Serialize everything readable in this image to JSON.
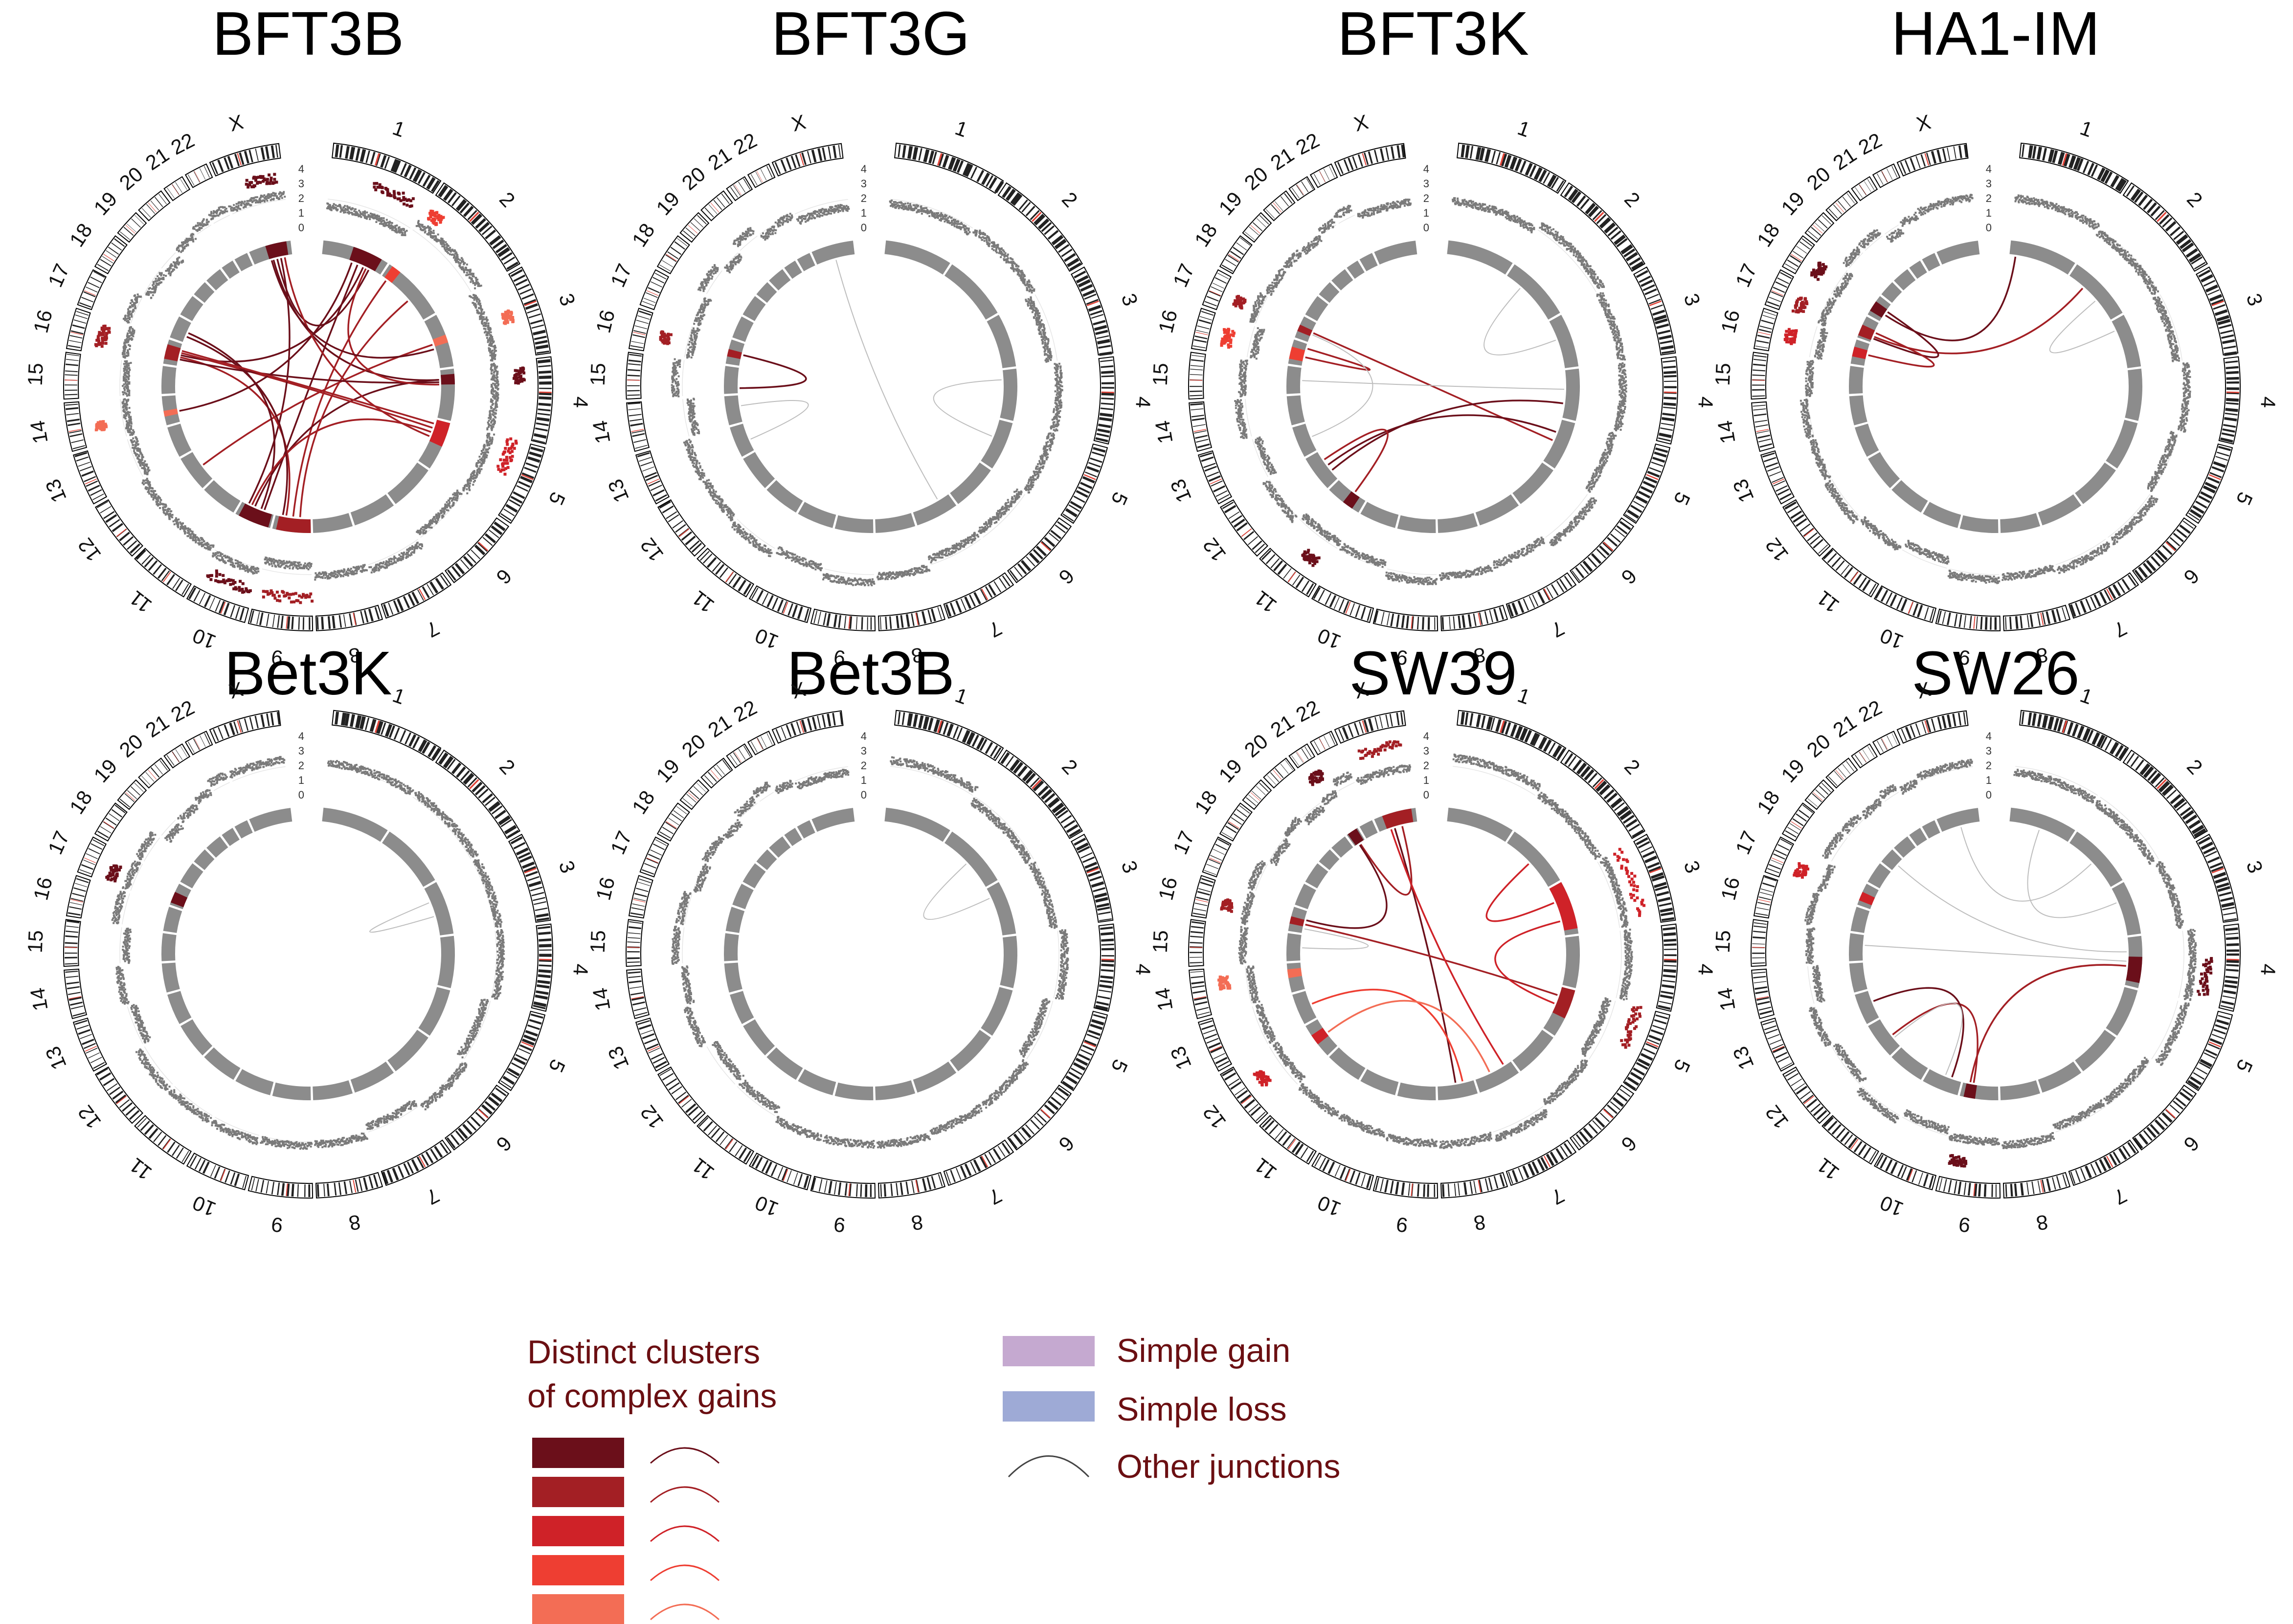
{
  "chromosomes": [
    "1",
    "2",
    "3",
    "4",
    "5",
    "6",
    "7",
    "8",
    "9",
    "10",
    "11",
    "12",
    "13",
    "14",
    "15",
    "16",
    "17",
    "18",
    "19",
    "20",
    "21",
    "22",
    "X"
  ],
  "chromosome_sizes": [
    249,
    243,
    198,
    191,
    181,
    171,
    159,
    146,
    141,
    136,
    135,
    133,
    115,
    107,
    102,
    90,
    83,
    80,
    59,
    64,
    47,
    51,
    156
  ],
  "copy_number_ticks": [
    "0",
    "1",
    "2",
    "3",
    "4"
  ],
  "colors": {
    "ideogram_outline": "#000000",
    "band": "#222222",
    "centromere": "#e2453a",
    "copy_points": "#7a7a7a",
    "chromosome_ring": "#8c8c8c",
    "other_junction": "#bdbdbd",
    "simple_gain": "#c5a9d0",
    "simple_loss": "#9eaad6",
    "cluster_1": "#6b0f1a",
    "cluster_2": "#a31f24",
    "cluster_3": "#cf2228",
    "cluster_4": "#ee3e32",
    "cluster_5": "#f36d55",
    "legend_text": "#6b0f12"
  },
  "panels": [
    {
      "title": "BFT3B",
      "clusters": [
        {
          "level": 1,
          "chr": "1",
          "start": 0.45,
          "end": 0.9
        },
        {
          "level": 4,
          "chr": "2",
          "start": 0.05,
          "end": 0.2
        },
        {
          "level": 5,
          "chr": "3",
          "start": 0.4,
          "end": 0.55
        },
        {
          "level": 1,
          "chr": "4",
          "start": 0.1,
          "end": 0.3
        },
        {
          "level": 3,
          "chr": "5",
          "start": 0.0,
          "end": 0.5
        },
        {
          "level": 2,
          "chr": "9",
          "start": 0.0,
          "end": 0.9
        },
        {
          "level": 1,
          "chr": "10",
          "start": 0.05,
          "end": 0.9
        },
        {
          "level": 5,
          "chr": "14",
          "start": 0.3,
          "end": 0.5
        },
        {
          "level": 2,
          "chr": "16",
          "start": 0.2,
          "end": 0.8
        },
        {
          "level": 1,
          "chr": "X",
          "start": 0.4,
          "end": 0.9
        }
      ],
      "junctions": [
        {
          "level": 1,
          "a": {
            "chr": "1",
            "pos": 0.6
          },
          "b": {
            "chr": "10",
            "pos": 0.3
          }
        },
        {
          "level": 1,
          "a": {
            "chr": "1",
            "pos": 0.7
          },
          "b": {
            "chr": "16",
            "pos": 0.5
          }
        },
        {
          "level": 1,
          "a": {
            "chr": "1",
            "pos": 0.8
          },
          "b": {
            "chr": "X",
            "pos": 0.6
          }
        },
        {
          "level": 2,
          "a": {
            "chr": "2",
            "pos": 0.1
          },
          "b": {
            "chr": "9",
            "pos": 0.5
          }
        },
        {
          "level": 1,
          "a": {
            "chr": "4",
            "pos": 0.2
          },
          "b": {
            "chr": "10",
            "pos": 0.6
          }
        },
        {
          "level": 2,
          "a": {
            "chr": "5",
            "pos": 0.2
          },
          "b": {
            "chr": "16",
            "pos": 0.6
          }
        },
        {
          "level": 1,
          "a": {
            "chr": "X",
            "pos": 0.7
          },
          "b": {
            "chr": "10",
            "pos": 0.8
          }
        },
        {
          "level": 2,
          "a": {
            "chr": "16",
            "pos": 0.4
          },
          "b": {
            "chr": "9",
            "pos": 0.7
          }
        },
        {
          "level": 1,
          "a": {
            "chr": "X",
            "pos": 0.5
          },
          "b": {
            "chr": "4",
            "pos": 0.2
          }
        },
        {
          "level": 2,
          "a": {
            "chr": "3",
            "pos": 0.5
          },
          "b": {
            "chr": "12",
            "pos": 0.5
          }
        },
        {
          "level": 1,
          "a": {
            "chr": "10",
            "pos": 0.4
          },
          "b": {
            "chr": "17",
            "pos": 0.5
          }
        },
        {
          "level": 2,
          "a": {
            "chr": "9",
            "pos": 0.3
          },
          "b": {
            "chr": "2",
            "pos": 0.6
          }
        },
        {
          "level": 1,
          "a": {
            "chr": "1",
            "pos": 0.5
          },
          "b": {
            "chr": "14",
            "pos": 0.4
          }
        },
        {
          "level": 2,
          "a": {
            "chr": "5",
            "pos": 0.4
          },
          "b": {
            "chr": "X",
            "pos": 0.8
          }
        },
        {
          "level": 1,
          "a": {
            "chr": "4",
            "pos": 0.25
          },
          "b": {
            "chr": "16",
            "pos": 0.3
          }
        },
        {
          "level": 2,
          "a": {
            "chr": "10",
            "pos": 0.7
          },
          "b": {
            "chr": "5",
            "pos": 0.3
          }
        },
        {
          "level": 1,
          "a": {
            "chr": "17",
            "pos": 0.3
          },
          "b": {
            "chr": "9",
            "pos": 0.8
          }
        },
        {
          "level": 2,
          "a": {
            "chr": "1",
            "pos": 0.75
          },
          "b": {
            "chr": "4",
            "pos": 0.3
          }
        },
        {
          "level": 1,
          "a": {
            "chr": "X",
            "pos": 0.45
          },
          "b": {
            "chr": "3",
            "pos": 0.6
          }
        },
        {
          "level": 2,
          "a": {
            "chr": "16",
            "pos": 0.7
          },
          "b": {
            "chr": "5",
            "pos": 0.1
          }
        }
      ]
    },
    {
      "title": "BFT3G",
      "clusters": [
        {
          "level": 2,
          "chr": "16",
          "start": 0.3,
          "end": 0.6
        }
      ],
      "junctions": [
        {
          "level": 1,
          "a": {
            "chr": "16",
            "pos": 0.5
          },
          "b": {
            "chr": "15",
            "pos": 0.2
          }
        },
        {
          "level": 0,
          "a": {
            "chr": "X",
            "pos": 0.5
          },
          "b": {
            "chr": "7",
            "pos": 0.3
          }
        },
        {
          "level": 0,
          "a": {
            "chr": "4",
            "pos": 0.2
          },
          "b": {
            "chr": "5",
            "pos": 0.4
          }
        },
        {
          "level": 0,
          "a": {
            "chr": "14",
            "pos": 0.6
          },
          "b": {
            "chr": "13",
            "pos": 0.4
          }
        }
      ]
    },
    {
      "title": "BFT3K",
      "clusters": [
        {
          "level": 4,
          "chr": "16",
          "start": 0.2,
          "end": 0.7
        },
        {
          "level": 2,
          "chr": "17",
          "start": 0.3,
          "end": 0.6
        },
        {
          "level": 1,
          "chr": "11",
          "start": 0.2,
          "end": 0.5
        }
      ],
      "junctions": [
        {
          "level": 2,
          "a": {
            "chr": "17",
            "pos": 0.5
          },
          "b": {
            "chr": "5",
            "pos": 0.5
          }
        },
        {
          "level": 2,
          "a": {
            "chr": "16",
            "pos": 0.4
          },
          "b": {
            "chr": "16",
            "pos": 0.8
          }
        },
        {
          "level": 1,
          "a": {
            "chr": "12",
            "pos": 0.3
          },
          "b": {
            "chr": "4",
            "pos": 0.7
          }
        },
        {
          "level": 1,
          "a": {
            "chr": "12",
            "pos": 0.5
          },
          "b": {
            "chr": "5",
            "pos": 0.3
          }
        },
        {
          "level": 2,
          "a": {
            "chr": "11",
            "pos": 0.4
          },
          "b": {
            "chr": "12",
            "pos": 0.7
          }
        },
        {
          "level": 0,
          "a": {
            "chr": "17",
            "pos": 0.4
          },
          "b": {
            "chr": "13",
            "pos": 0.5
          }
        },
        {
          "level": 0,
          "a": {
            "chr": "2",
            "pos": 0.3
          },
          "b": {
            "chr": "3",
            "pos": 0.4
          }
        },
        {
          "level": 0,
          "a": {
            "chr": "15",
            "pos": 0.5
          },
          "b": {
            "chr": "4",
            "pos": 0.4
          }
        }
      ]
    },
    {
      "title": "HA1-IM",
      "clusters": [
        {
          "level": 2,
          "chr": "17",
          "start": 0.1,
          "end": 0.6
        },
        {
          "level": 1,
          "chr": "18",
          "start": 0.2,
          "end": 0.7
        },
        {
          "level": 3,
          "chr": "16",
          "start": 0.3,
          "end": 0.7
        }
      ],
      "junctions": [
        {
          "level": 1,
          "a": {
            "chr": "18",
            "pos": 0.4
          },
          "b": {
            "chr": "1",
            "pos": 0.1
          }
        },
        {
          "level": 2,
          "a": {
            "chr": "17",
            "pos": 0.3
          },
          "b": {
            "chr": "2",
            "pos": 0.3
          }
        },
        {
          "level": 1,
          "a": {
            "chr": "17",
            "pos": 0.2
          },
          "b": {
            "chr": "18",
            "pos": 0.6
          }
        },
        {
          "level": 2,
          "a": {
            "chr": "16",
            "pos": 0.5
          },
          "b": {
            "chr": "17",
            "pos": 0.5
          }
        },
        {
          "level": 0,
          "a": {
            "chr": "2",
            "pos": 0.6
          },
          "b": {
            "chr": "3",
            "pos": 0.2
          }
        }
      ]
    },
    {
      "title": "Bet3K",
      "clusters": [
        {
          "level": 1,
          "chr": "17",
          "start": 0.1,
          "end": 0.6
        }
      ],
      "junctions": [
        {
          "level": 0,
          "a": {
            "chr": "3",
            "pos": 0.3
          },
          "b": {
            "chr": "3",
            "pos": 0.6
          }
        }
      ]
    },
    {
      "title": "Bet3B",
      "clusters": [],
      "junctions": [
        {
          "level": 0,
          "a": {
            "chr": "2",
            "pos": 0.5
          },
          "b": {
            "chr": "3",
            "pos": 0.2
          }
        }
      ]
    },
    {
      "title": "SW39",
      "clusters": [
        {
          "level": 2,
          "chr": "X",
          "start": 0.2,
          "end": 0.9
        },
        {
          "level": 1,
          "chr": "21",
          "start": 0.1,
          "end": 0.9
        },
        {
          "level": 3,
          "chr": "3",
          "start": 0.0,
          "end": 0.9
        },
        {
          "level": 2,
          "chr": "5",
          "start": 0.0,
          "end": 0.6
        },
        {
          "level": 2,
          "chr": "16",
          "start": 0.3,
          "end": 0.6
        },
        {
          "level": 5,
          "chr": "14",
          "start": 0.5,
          "end": 0.8
        },
        {
          "level": 3,
          "chr": "12",
          "start": 0.4,
          "end": 0.7
        }
      ],
      "junctions": [
        {
          "level": 1,
          "a": {
            "chr": "X",
            "pos": 0.4
          },
          "b": {
            "chr": "8",
            "pos": 0.5
          }
        },
        {
          "level": 2,
          "a": {
            "chr": "X",
            "pos": 0.6
          },
          "b": {
            "chr": "21",
            "pos": 0.5
          }
        },
        {
          "level": 2,
          "a": {
            "chr": "16",
            "pos": 0.4
          },
          "b": {
            "chr": "5",
            "pos": 0.2
          }
        },
        {
          "level": 3,
          "a": {
            "chr": "2",
            "pos": 0.5
          },
          "b": {
            "chr": "3",
            "pos": 0.3
          }
        },
        {
          "level": 1,
          "a": {
            "chr": "21",
            "pos": 0.4
          },
          "b": {
            "chr": "16",
            "pos": 0.6
          }
        },
        {
          "level": 3,
          "a": {
            "chr": "3",
            "pos": 0.7
          },
          "b": {
            "chr": "5",
            "pos": 0.4
          }
        },
        {
          "level": 4,
          "a": {
            "chr": "13",
            "pos": 0.5
          },
          "b": {
            "chr": "8",
            "pos": 0.3
          }
        },
        {
          "level": 5,
          "a": {
            "chr": "12",
            "pos": 0.5
          },
          "b": {
            "chr": "7",
            "pos": 0.6
          }
        },
        {
          "level": 3,
          "a": {
            "chr": "X",
            "pos": 0.3
          },
          "b": {
            "chr": "7",
            "pos": 0.2
          }
        },
        {
          "level": 0,
          "a": {
            "chr": "15",
            "pos": 0.5
          },
          "b": {
            "chr": "16",
            "pos": 0.2
          }
        }
      ]
    },
    {
      "title": "SW26",
      "clusters": [
        {
          "level": 3,
          "chr": "17",
          "start": 0.2,
          "end": 0.6
        },
        {
          "level": 1,
          "chr": "4",
          "start": 0.4,
          "end": 0.9
        },
        {
          "level": 1,
          "chr": "9",
          "start": 0.6,
          "end": 0.9
        }
      ],
      "junctions": [
        {
          "level": 2,
          "a": {
            "chr": "4",
            "pos": 0.6
          },
          "b": {
            "chr": "9",
            "pos": 0.8
          }
        },
        {
          "level": 2,
          "a": {
            "chr": "9",
            "pos": 0.7
          },
          "b": {
            "chr": "12",
            "pos": 0.4
          }
        },
        {
          "level": 1,
          "a": {
            "chr": "10",
            "pos": 0.3
          },
          "b": {
            "chr": "13",
            "pos": 0.6
          }
        },
        {
          "level": 0,
          "a": {
            "chr": "1",
            "pos": 0.5
          },
          "b": {
            "chr": "3",
            "pos": 0.3
          }
        },
        {
          "level": 0,
          "a": {
            "chr": "19",
            "pos": 0.5
          },
          "b": {
            "chr": "4",
            "pos": 0.3
          }
        },
        {
          "level": 0,
          "a": {
            "chr": "X",
            "pos": 0.5
          },
          "b": {
            "chr": "2",
            "pos": 0.5
          }
        },
        {
          "level": 0,
          "a": {
            "chr": "15",
            "pos": 0.6
          },
          "b": {
            "chr": "4",
            "pos": 0.5
          }
        },
        {
          "level": 0,
          "a": {
            "chr": "12",
            "pos": 0.3
          },
          "b": {
            "chr": "10",
            "pos": 0.5
          }
        }
      ]
    }
  ],
  "legend": {
    "clusters_title_line1": "Distinct clusters",
    "clusters_title_line2": "of complex gains",
    "cluster_levels": [
      1,
      2,
      3,
      4,
      5
    ],
    "simple_gain": "Simple gain",
    "simple_loss": "Simple loss",
    "other_junctions": "Other junctions"
  }
}
